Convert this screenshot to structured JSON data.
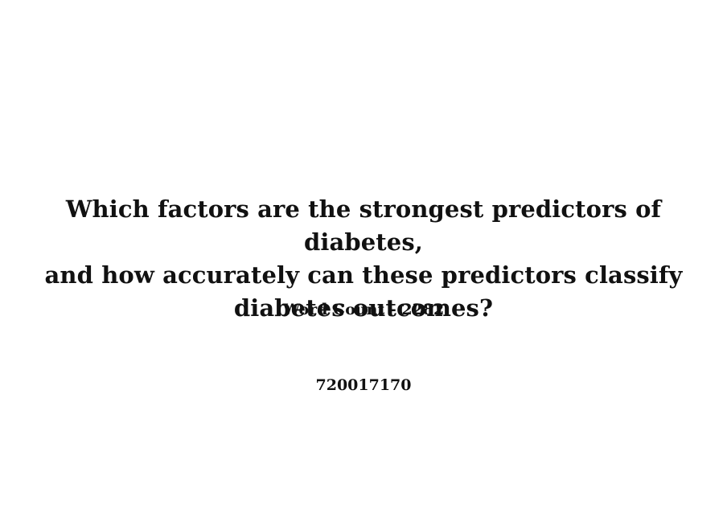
{
  "document": {
    "title_lines": [
      "Which factors are the strongest predictors of diabetes,",
      "and how accurately can these predictors classify",
      "diabetes outcomes?"
    ],
    "word_count": "Word Count - 2282",
    "candidate_number": "720017170"
  }
}
